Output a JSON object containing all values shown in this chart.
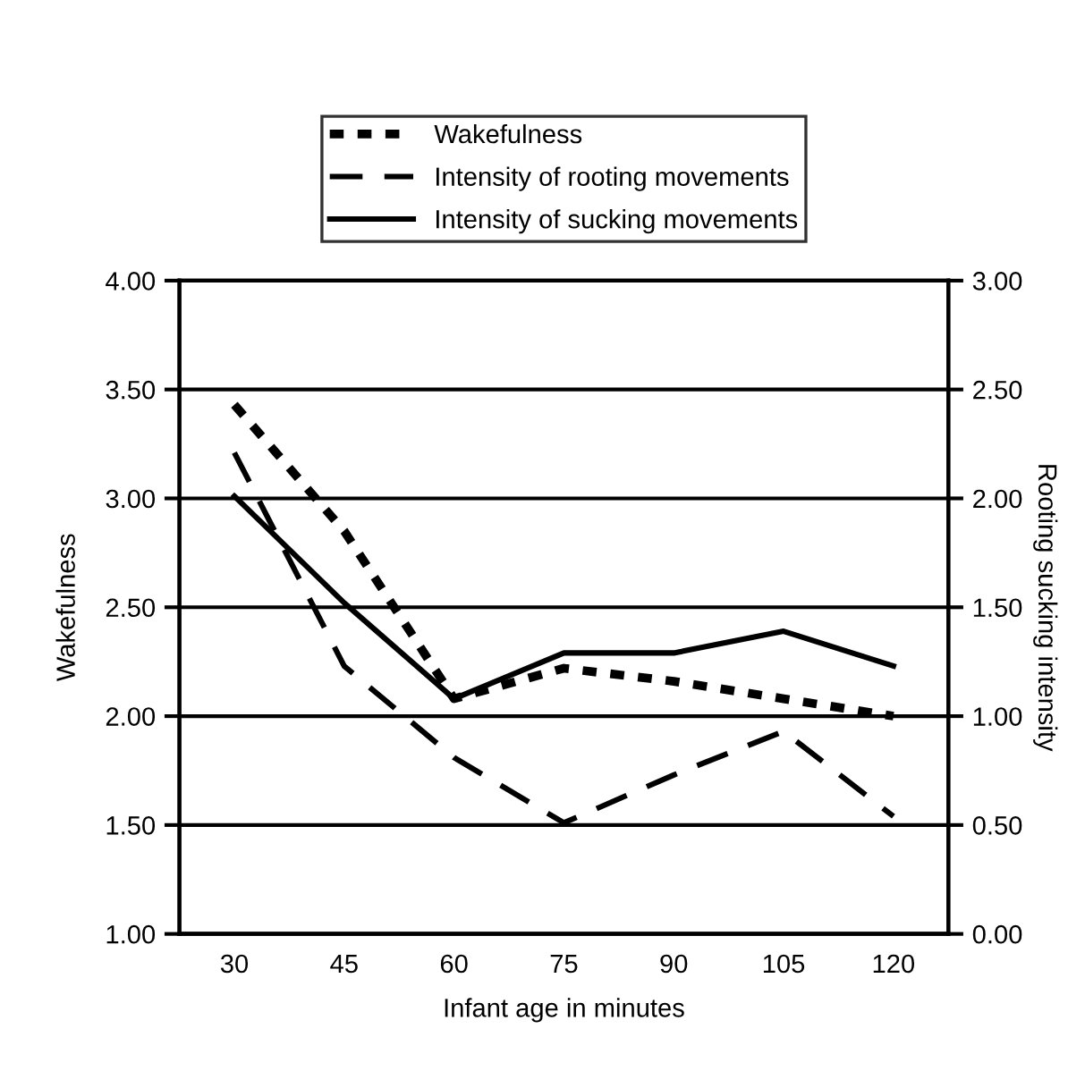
{
  "chart_data": {
    "type": "line",
    "xlabel": "Infant age in minutes",
    "ylabel": "Wakefulness",
    "y2label": "Rooting sucking intensity",
    "categories": [
      "30",
      "45",
      "60",
      "75",
      "90",
      "105",
      "120"
    ],
    "series": [
      {
        "name": "Wakefulness",
        "color": "#000000",
        "line_style": "dotted",
        "values": [
          3.43,
          2.85,
          2.08,
          2.22,
          2.16,
          2.08,
          2.0
        ]
      },
      {
        "name": "Intensity of rooting movements",
        "color": "#000000",
        "line_style": "dashed",
        "axis": "y2",
        "values": [
          2.21,
          1.23,
          0.81,
          0.51,
          0.73,
          0.93,
          0.54
        ]
      },
      {
        "name": "Intensity of sucking movements",
        "color": "#000000",
        "line_style": "solid",
        "axis": "y2",
        "values": [
          2.01,
          1.52,
          1.08,
          1.29,
          1.29,
          1.39,
          1.23
        ]
      }
    ],
    "ylim": [
      1.0,
      4.0
    ],
    "yticks": [
      {
        "value": 1.0,
        "label": "1.00"
      },
      {
        "value": 1.5,
        "label": "1.50"
      },
      {
        "value": 2.0,
        "label": "2.00"
      },
      {
        "value": 2.5,
        "label": "2.50"
      },
      {
        "value": 3.0,
        "label": "3.00"
      },
      {
        "value": 3.5,
        "label": "3.50"
      },
      {
        "value": 4.0,
        "label": "4.00"
      }
    ],
    "y2lim": [
      0.0,
      3.0
    ],
    "y2ticks": [
      {
        "value": 0.0,
        "label": "0.00"
      },
      {
        "value": 0.5,
        "label": "0.50"
      },
      {
        "value": 1.0,
        "label": "1.00"
      },
      {
        "value": 1.5,
        "label": "1.50"
      },
      {
        "value": 2.0,
        "label": "2.00"
      },
      {
        "value": 2.5,
        "label": "2.50"
      },
      {
        "value": 3.0,
        "label": "3.00"
      }
    ],
    "grid": "y",
    "legend": "top",
    "marker": "none"
  }
}
